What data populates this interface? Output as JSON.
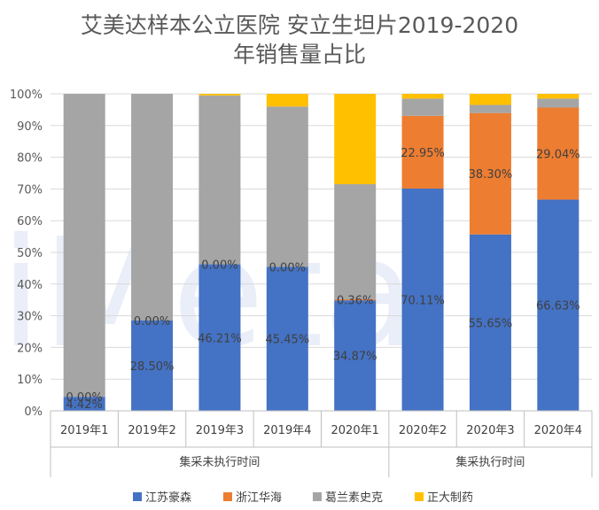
{
  "chart_data": {
    "type": "bar",
    "stacked": "percent",
    "title": [
      "艾美达样本公立医院 安立生坦片2019-2020",
      "年销售量占比"
    ],
    "watermark": "iMeta",
    "categories": [
      "2019年1",
      "2019年2",
      "2019年3",
      "2019年4",
      "2020年1",
      "2020年2",
      "2020年3",
      "2020年4"
    ],
    "category_groups": [
      {
        "label": "集采未执行时间",
        "from": 0,
        "to": 4
      },
      {
        "label": "集采执行时间",
        "from": 5,
        "to": 7
      }
    ],
    "y_ticks": [
      "0%",
      "10%",
      "20%",
      "30%",
      "40%",
      "50%",
      "60%",
      "70%",
      "80%",
      "90%",
      "100%"
    ],
    "ylim": [
      0,
      100
    ],
    "grid": true,
    "legend_position": "bottom",
    "series": [
      {
        "name": "江苏豪森",
        "color": "#4472C4",
        "values": [
          4.42,
          28.5,
          46.21,
          45.45,
          34.87,
          70.11,
          55.65,
          66.63
        ],
        "labels": [
          "4.42%",
          "28.50%",
          "46.21%",
          "45.45%",
          "34.87%",
          "70.11%",
          "55.65%",
          "66.63%"
        ]
      },
      {
        "name": "浙江华海",
        "color": "#ED7D31",
        "values": [
          0,
          0,
          0,
          0,
          0.36,
          22.95,
          38.3,
          29.04
        ],
        "labels": [
          "0.00%",
          "0.00%",
          "0.00%",
          "0.00%",
          "0.36%",
          "22.95%",
          "38.30%",
          "29.04%"
        ]
      },
      {
        "name": "葛兰素史克",
        "color": "#A5A5A5",
        "values": [
          95.58,
          71.5,
          53.29,
          50.55,
          36.27,
          5.44,
          2.55,
          2.83
        ],
        "labels": []
      },
      {
        "name": "正大制药",
        "color": "#FFC000",
        "values": [
          0,
          0,
          0.5,
          4.0,
          28.5,
          1.5,
          3.5,
          1.5
        ],
        "labels": []
      }
    ]
  }
}
